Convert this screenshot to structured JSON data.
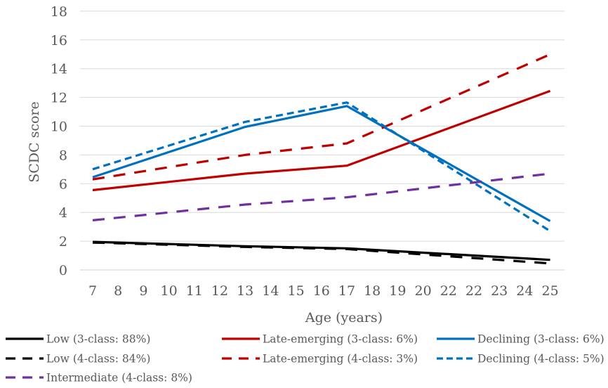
{
  "chart_data": {
    "type": "line",
    "x": [
      "7",
      "8",
      "9",
      "10",
      "11",
      "12",
      "13",
      "14",
      "15",
      "16",
      "17",
      "18",
      "19",
      "20",
      "22",
      "22",
      "23",
      "24",
      "25"
    ],
    "xlabel": "Age (years)",
    "ylabel": "SCDC score",
    "ylim": [
      0,
      18
    ],
    "yticks": [
      "0",
      "2",
      "4",
      "6",
      "8",
      "10",
      "12",
      "14",
      "16",
      "18"
    ],
    "grid": "horizontal",
    "legend_position": "bottom",
    "series": [
      {
        "name": "Low (3-class: 88%)",
        "color": "#000000",
        "dash": "solid",
        "points": [
          {
            "x": 7,
            "y": 1.95
          },
          {
            "x": 13,
            "y": 1.65
          },
          {
            "x": 17,
            "y": 1.5
          },
          {
            "x": 25,
            "y": 0.7
          }
        ]
      },
      {
        "name": "Late-emerging (3-class: 6%)",
        "color": "#c00000",
        "dash": "solid",
        "points": [
          {
            "x": 7,
            "y": 5.55
          },
          {
            "x": 13,
            "y": 6.7
          },
          {
            "x": 17,
            "y": 7.25
          },
          {
            "x": 25,
            "y": 12.45
          }
        ]
      },
      {
        "name": "Declining (3-class: 6%)",
        "color": "#0070c0",
        "dash": "solid",
        "points": [
          {
            "x": 7,
            "y": 6.45
          },
          {
            "x": 13,
            "y": 9.95
          },
          {
            "x": 17,
            "y": 11.4
          },
          {
            "x": 25,
            "y": 3.4
          }
        ]
      },
      {
        "name": "Low (4-class: 84%)",
        "color": "#000000",
        "dash": "dashed",
        "points": [
          {
            "x": 7,
            "y": 1.9
          },
          {
            "x": 13,
            "y": 1.6
          },
          {
            "x": 17,
            "y": 1.45
          },
          {
            "x": 25,
            "y": 0.45
          }
        ]
      },
      {
        "name": "Late-emerging (4-class: 3%)",
        "color": "#c00000",
        "dash": "dashed",
        "points": [
          {
            "x": 7,
            "y": 6.3
          },
          {
            "x": 13,
            "y": 8.0
          },
          {
            "x": 17,
            "y": 8.8
          },
          {
            "x": 25,
            "y": 15.0
          }
        ]
      },
      {
        "name": "Declining (4-class: 5%)",
        "color": "#0070c0",
        "dash": "dashed",
        "points": [
          {
            "x": 7,
            "y": 7.0
          },
          {
            "x": 13,
            "y": 10.3
          },
          {
            "x": 17,
            "y": 11.65
          },
          {
            "x": 25,
            "y": 2.7
          }
        ]
      },
      {
        "name": "Intermediate (4-class: 8%)",
        "color": "#7030a0",
        "dash": "dashed",
        "points": [
          {
            "x": 7,
            "y": 3.45
          },
          {
            "x": 13,
            "y": 4.55
          },
          {
            "x": 17,
            "y": 5.05
          },
          {
            "x": 25,
            "y": 6.7
          }
        ]
      }
    ]
  }
}
